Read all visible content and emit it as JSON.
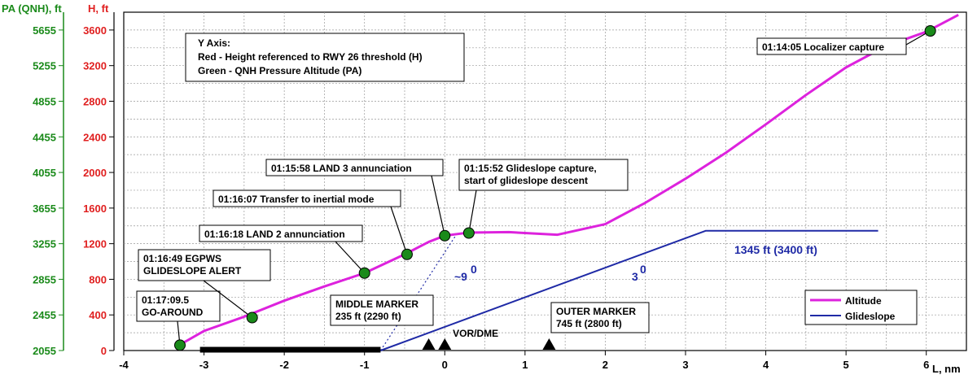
{
  "chart_data": {
    "type": "line",
    "y_axis_left_outer": {
      "label": "PA (QNH), ft",
      "color": "#1a8a1a",
      "ticks": [
        "2055",
        "2455",
        "2855",
        "3255",
        "3655",
        "4055",
        "4455",
        "4855",
        "5255",
        "5655"
      ]
    },
    "y_axis_left_inner": {
      "label": "H, ft",
      "color": "#e02020",
      "ticks": [
        "0",
        "400",
        "800",
        "1200",
        "1600",
        "2000",
        "2400",
        "2800",
        "3200",
        "3600"
      ],
      "ylim": [
        0,
        3800
      ]
    },
    "x_axis": {
      "label": "L, nm",
      "ticks": [
        "-4",
        "-3",
        "-2",
        "-1",
        "0",
        "1",
        "2",
        "3",
        "4",
        "5",
        "6"
      ],
      "xlim": [
        -4,
        6.5
      ]
    },
    "grid": true,
    "info_box": {
      "title": "Y Axis:",
      "line_red": "Red - Height referenced to RWY 26 threshold (H)",
      "line_green": "Green - QNH Pressure Altitude (PA)"
    },
    "legend": {
      "position": "bottom-right",
      "altitude": "Altitude",
      "glideslope": "Glideslope"
    },
    "series": [
      {
        "name": "Altitude",
        "color": "#dd22dd",
        "x": [
          -3.35,
          -3.0,
          -2.5,
          -2.0,
          -1.5,
          -1.0,
          -0.5,
          -0.2,
          0.0,
          0.3,
          0.8,
          1.4,
          2.0,
          2.5,
          3.0,
          3.5,
          4.0,
          4.5,
          5.0,
          5.5,
          6.0,
          6.4
        ],
        "y": [
          40,
          220,
          380,
          560,
          720,
          870,
          1080,
          1220,
          1290,
          1325,
          1330,
          1300,
          1420,
          1660,
          1930,
          2220,
          2540,
          2870,
          3180,
          3420,
          3580,
          3770
        ]
      },
      {
        "name": "Glideslope",
        "color": "#1f2aa6",
        "x": [
          -0.8,
          3.25,
          5.4
        ],
        "y": [
          0,
          1345,
          1345
        ]
      }
    ],
    "extension_dotted": {
      "x": [
        -0.8,
        0.15
      ],
      "y": [
        0,
        1310
      ]
    },
    "events": [
      {
        "x": -3.3,
        "y": 60,
        "label": "01:17:09.5\nGO-AROUND"
      },
      {
        "x": -2.4,
        "y": 370,
        "label": "01:16:49 EGPWS\nGLIDESLOPE ALERT"
      },
      {
        "x": -1.0,
        "y": 870,
        "label": "01:16:18 LAND 2 annunciation"
      },
      {
        "x": -0.47,
        "y": 1080,
        "label": "01:16:07 Transfer to inertial mode"
      },
      {
        "x": 0.0,
        "y": 1290,
        "label": "01:15:58 LAND 3 annunciation"
      },
      {
        "x": 0.3,
        "y": 1320,
        "label": "01:15:52 Glideslope capture,\nstart of glideslope descent"
      },
      {
        "x": 6.05,
        "y": 3590,
        "label": "01:14:05 Localizer capture"
      }
    ],
    "markers": [
      {
        "x": -0.2,
        "label": ""
      },
      {
        "x": 0.0,
        "label": "VOR/DME"
      },
      {
        "x": 1.3,
        "label": ""
      }
    ],
    "annotations": {
      "middle_marker": "MIDDLE MARKER\n235 ft (2290 ft)",
      "outer_marker": "OUTER MARKER\n745 ft (2800 ft)",
      "glideslope_alt": "1345 ft (3400 ft)",
      "angle_9": "~9",
      "angle_3": "3",
      "degree": "0"
    },
    "runway": {
      "x_start": -3.05,
      "x_end": -0.8
    }
  }
}
